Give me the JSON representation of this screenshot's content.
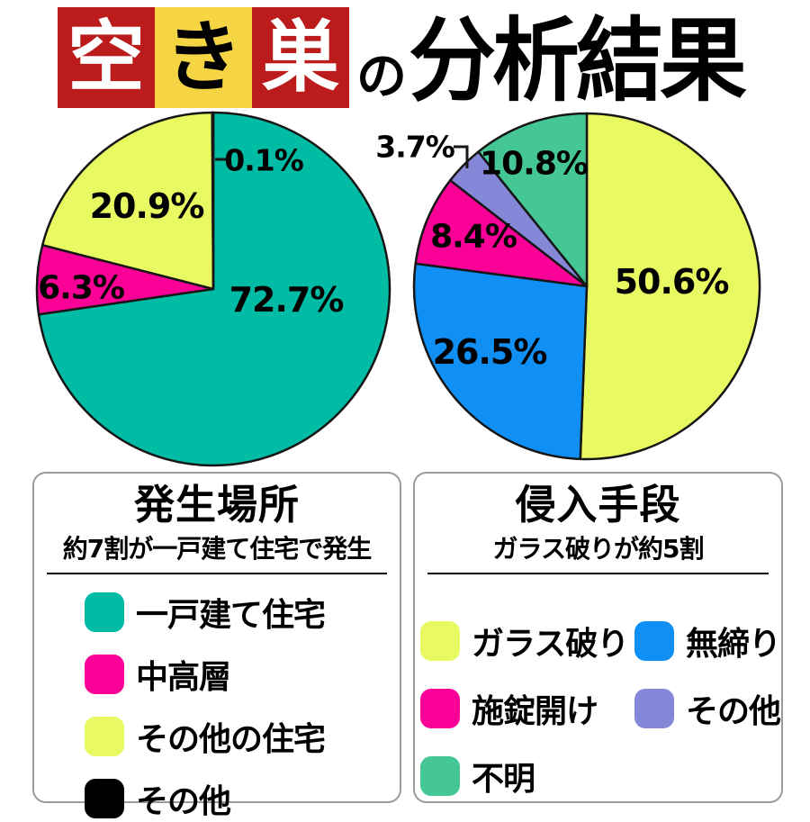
{
  "header": {
    "boxed_chars": [
      {
        "char": "空",
        "bg": "#bb1b1b",
        "fg": "#ffffff"
      },
      {
        "char": "き",
        "bg": "#f6d544",
        "fg": "#000000"
      },
      {
        "char": "巣",
        "bg": "#bb1b1b",
        "fg": "#ffffff"
      }
    ],
    "connector": "の",
    "rest": "分析結果"
  },
  "chart_data": [
    {
      "type": "pie",
      "title": "発生場所",
      "subtitle": "約7割が一戸建て住宅で発生",
      "start_angle_deg": 0,
      "direction": "clockwise",
      "legend_position": "bottom-panel",
      "slices": [
        {
          "label": "一戸建て住宅",
          "value": 72.7,
          "display": "72.7%",
          "color": "#00bca4"
        },
        {
          "label": "中高層",
          "value": 6.3,
          "display": "6.3%",
          "color": "#fb0097"
        },
        {
          "label": "その他の住宅",
          "value": 20.9,
          "display": "20.9%",
          "color": "#e9f961"
        },
        {
          "label": "その他",
          "value": 0.1,
          "display": "0.1%",
          "color": "#000000"
        }
      ]
    },
    {
      "type": "pie",
      "title": "侵入手段",
      "subtitle": "ガラス破りが約5割",
      "start_angle_deg": 0,
      "direction": "clockwise",
      "legend_position": "bottom-panel",
      "slices": [
        {
          "label": "ガラス破り",
          "value": 50.6,
          "display": "50.6%",
          "color": "#e9f961"
        },
        {
          "label": "無締り",
          "value": 26.5,
          "display": "26.5%",
          "color": "#1090f5"
        },
        {
          "label": "施錠開け",
          "value": 8.4,
          "display": "8.4%",
          "color": "#fb0097"
        },
        {
          "label": "その他",
          "value": 3.7,
          "display": "3.7%",
          "color": "#8587d8"
        },
        {
          "label": "不明",
          "value": 10.8,
          "display": "10.8%",
          "color": "#44c795"
        }
      ]
    }
  ],
  "colors": {
    "slice_outline": "#161616",
    "panel_border": "#9a9a9a",
    "label_text": "#000000"
  }
}
